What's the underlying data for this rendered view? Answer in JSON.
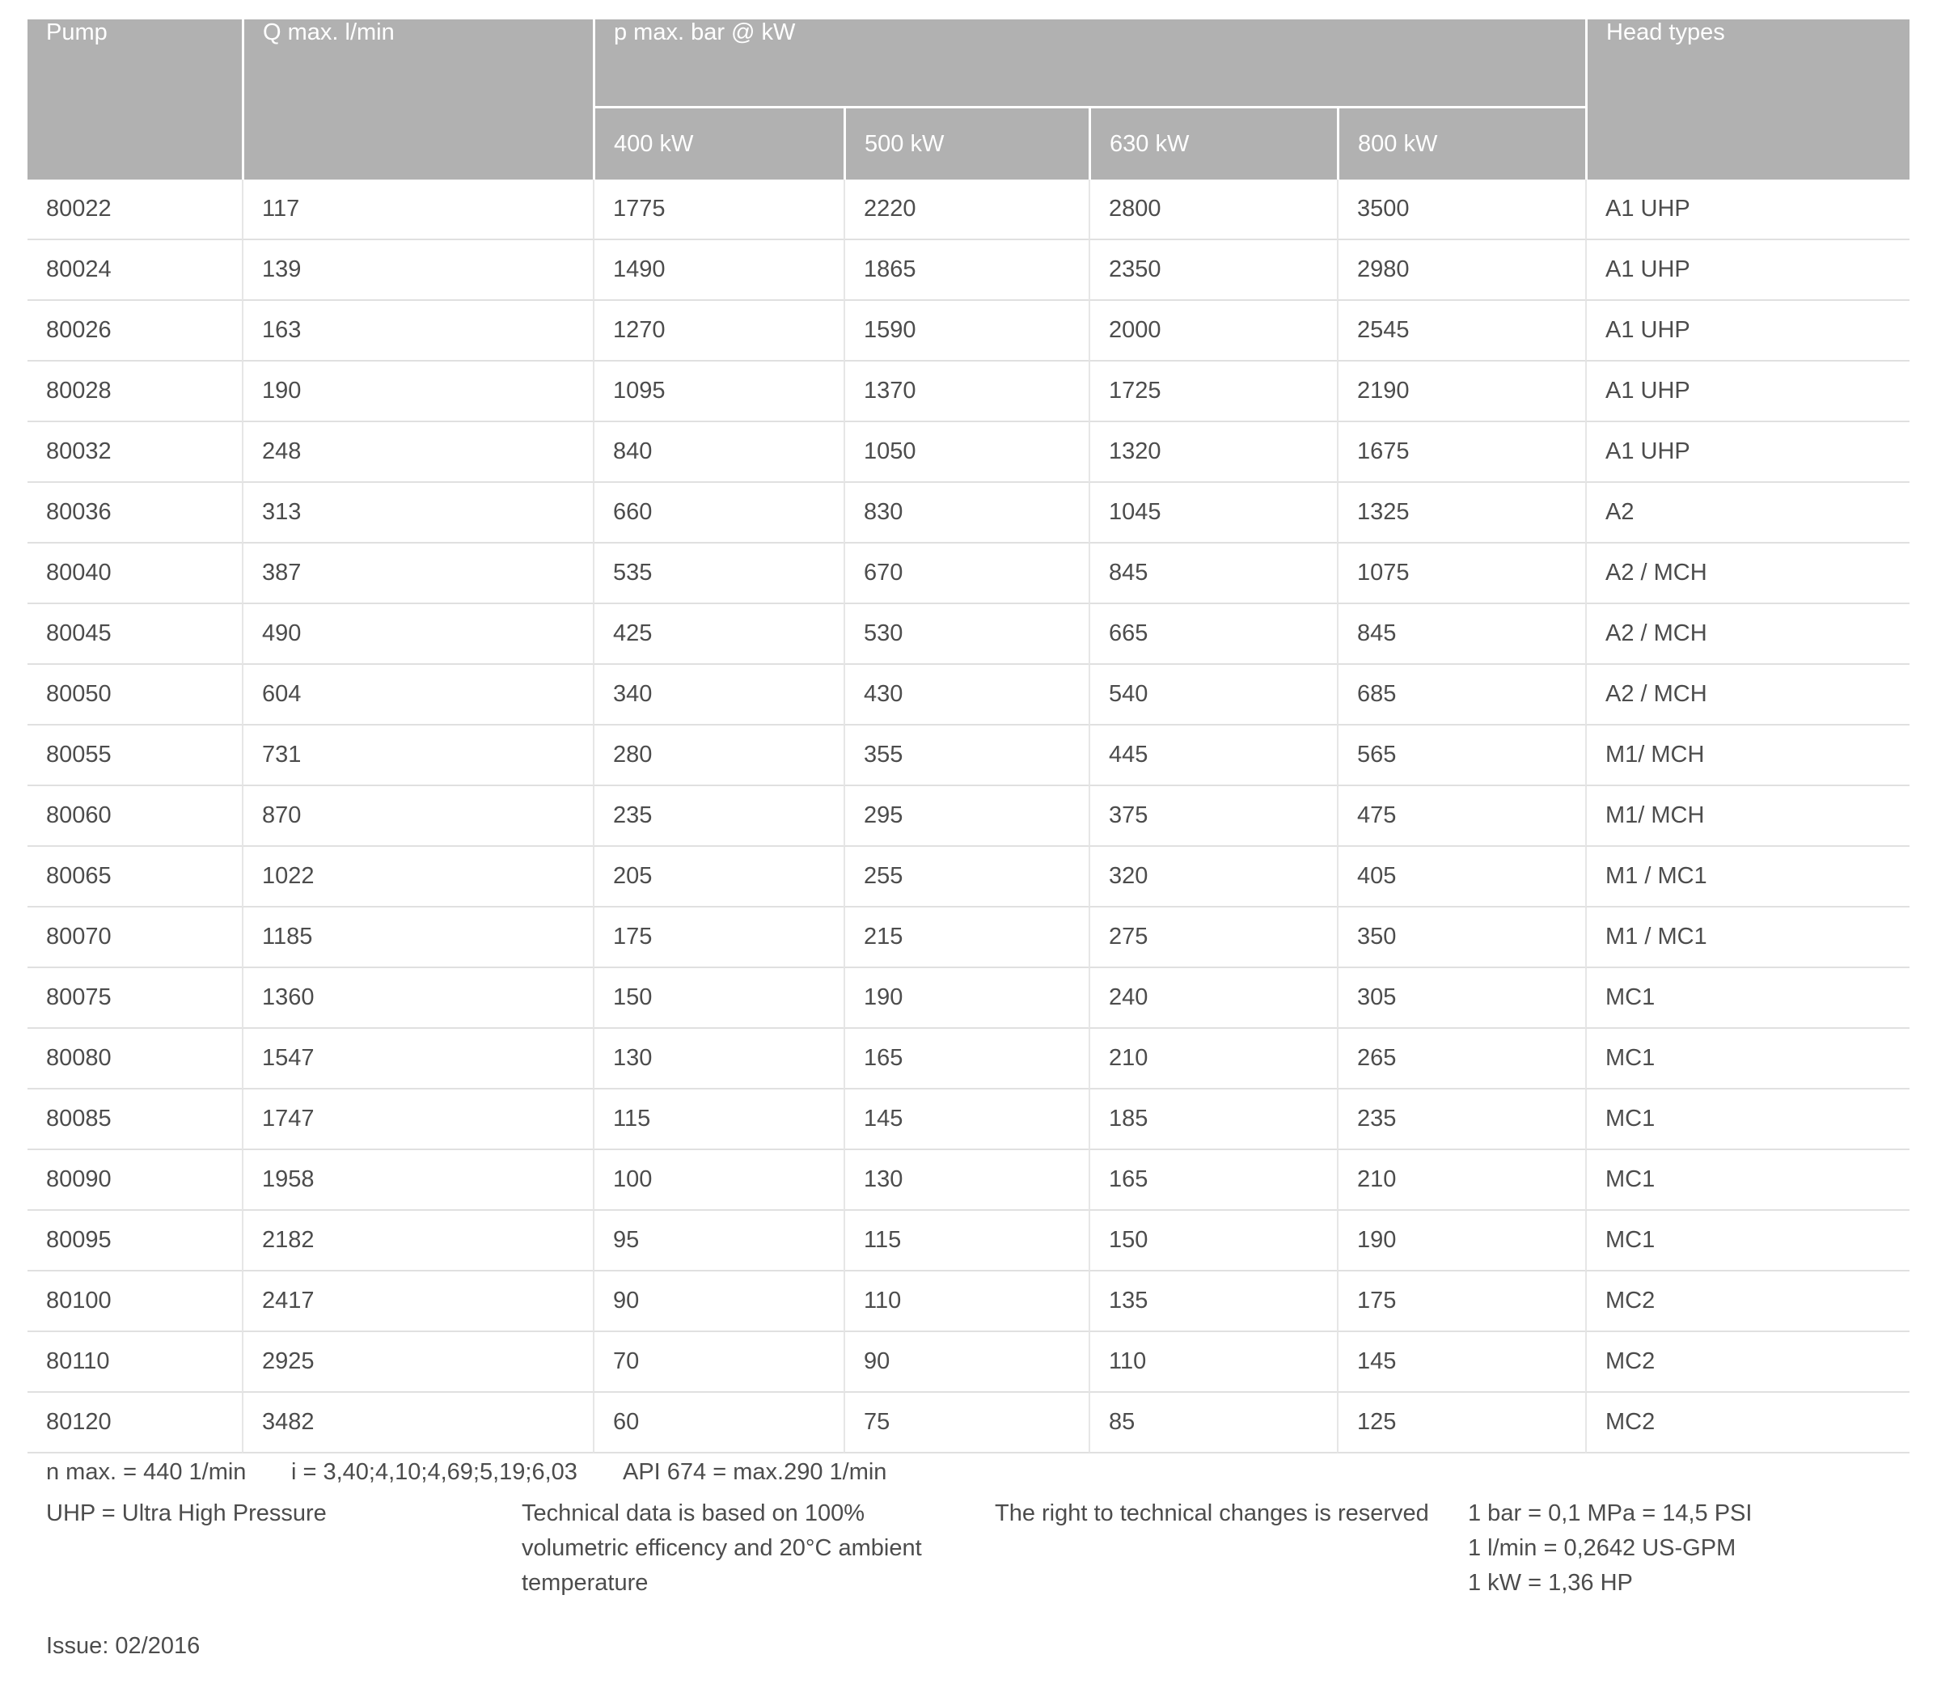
{
  "table": {
    "columns": {
      "pump": "Pump",
      "q_max": "Q max. l/min",
      "p_max_group": "p max. bar @ kW",
      "kw": [
        "400 kW",
        "500 kW",
        "630 kW",
        "800 kW"
      ],
      "head_types": "Head types"
    },
    "rows": [
      {
        "pump": "80022",
        "q_max": "117",
        "kw": [
          "1775",
          "2220",
          "2800",
          "3500"
        ],
        "head": "A1 UHP"
      },
      {
        "pump": "80024",
        "q_max": "139",
        "kw": [
          "1490",
          "1865",
          "2350",
          "2980"
        ],
        "head": "A1 UHP"
      },
      {
        "pump": "80026",
        "q_max": "163",
        "kw": [
          "1270",
          "1590",
          "2000",
          "2545"
        ],
        "head": "A1 UHP"
      },
      {
        "pump": "80028",
        "q_max": "190",
        "kw": [
          "1095",
          "1370",
          "1725",
          "2190"
        ],
        "head": "A1 UHP"
      },
      {
        "pump": "80032",
        "q_max": "248",
        "kw": [
          "840",
          "1050",
          "1320",
          "1675"
        ],
        "head": "A1 UHP"
      },
      {
        "pump": "80036",
        "q_max": "313",
        "kw": [
          "660",
          "830",
          "1045",
          "1325"
        ],
        "head": "A2"
      },
      {
        "pump": "80040",
        "q_max": "387",
        "kw": [
          "535",
          "670",
          "845",
          "1075"
        ],
        "head": "A2 / MCH"
      },
      {
        "pump": "80045",
        "q_max": "490",
        "kw": [
          "425",
          "530",
          "665",
          "845"
        ],
        "head": "A2 / MCH"
      },
      {
        "pump": "80050",
        "q_max": "604",
        "kw": [
          "340",
          "430",
          "540",
          "685"
        ],
        "head": "A2 / MCH"
      },
      {
        "pump": "80055",
        "q_max": "731",
        "kw": [
          "280",
          "355",
          "445",
          "565"
        ],
        "head": "M1/ MCH"
      },
      {
        "pump": "80060",
        "q_max": "870",
        "kw": [
          "235",
          "295",
          "375",
          "475"
        ],
        "head": "M1/ MCH"
      },
      {
        "pump": "80065",
        "q_max": "1022",
        "kw": [
          "205",
          "255",
          "320",
          "405"
        ],
        "head": "M1 / MC1"
      },
      {
        "pump": "80070",
        "q_max": "1185",
        "kw": [
          "175",
          "215",
          "275",
          "350"
        ],
        "head": "M1 / MC1"
      },
      {
        "pump": "80075",
        "q_max": "1360",
        "kw": [
          "150",
          "190",
          "240",
          "305"
        ],
        "head": "MC1"
      },
      {
        "pump": "80080",
        "q_max": "1547",
        "kw": [
          "130",
          "165",
          "210",
          "265"
        ],
        "head": "MC1"
      },
      {
        "pump": "80085",
        "q_max": "1747",
        "kw": [
          "115",
          "145",
          "185",
          "235"
        ],
        "head": "MC1"
      },
      {
        "pump": "80090",
        "q_max": "1958",
        "kw": [
          "100",
          "130",
          "165",
          "210"
        ],
        "head": "MC1"
      },
      {
        "pump": "80095",
        "q_max": "2182",
        "kw": [
          "95",
          "115",
          "150",
          "190"
        ],
        "head": "MC1"
      },
      {
        "pump": "80100",
        "q_max": "2417",
        "kw": [
          "90",
          "110",
          "135",
          "175"
        ],
        "head": "MC2"
      },
      {
        "pump": "80110",
        "q_max": "2925",
        "kw": [
          "70",
          "90",
          "110",
          "145"
        ],
        "head": "MC2"
      },
      {
        "pump": "80120",
        "q_max": "3482",
        "kw": [
          "60",
          "75",
          "85",
          "125"
        ],
        "head": "MC2"
      }
    ]
  },
  "footnotes": {
    "n_max": "n max. = 440 1/min",
    "i": "i = 3,40;4,10;4,69;5,19;6,03",
    "api_674": "API 674 = max.290 1/min"
  },
  "notes": {
    "uhp": "UHP = Ultra High Pressure",
    "technical": "Technical data is based on 100%\nvolumetric efficency and 20°C ambient\ntemperature",
    "rights": "The right to technical changes is reserved",
    "conversions": "1 bar = 0,1 MPa = 14,5 PSI\n1 l/min = 0,2642 US-GPM\n1 kW = 1,36 HP"
  },
  "issue": "Issue: 02/2016",
  "colors": {
    "header_bg": "#b1b1b1",
    "header_text": "#ffffff",
    "body_text": "#4c4c4c",
    "row_divider": "#e0e0e0"
  }
}
